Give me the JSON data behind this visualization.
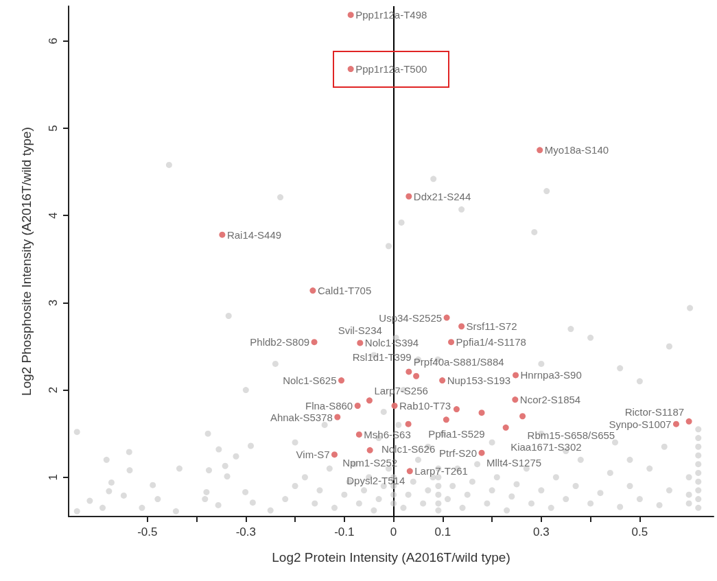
{
  "chart_data": {
    "type": "scatter",
    "xlabel": "Log2 Protein Intensity (A2016T/wild type)",
    "ylabel": "Log2 Phosphosite Intensity (A2016T/wild type)",
    "xlim": [
      -0.66,
      0.65
    ],
    "ylim": [
      0.55,
      6.4
    ],
    "xticks": [
      -0.5,
      {
        "value": -0.4,
        "label": null
      },
      -0.3,
      {
        "value": -0.2,
        "label": null
      },
      -0.1,
      0,
      0.1,
      {
        "value": 0.2,
        "label": null
      },
      0.3,
      {
        "value": 0.4,
        "label": null
      },
      0.5
    ],
    "yticks": [
      1,
      2,
      3,
      4,
      5,
      6
    ],
    "grid": false,
    "marker": "circle",
    "ref_lines": [
      {
        "axis": "x",
        "value": 0,
        "color": "#000000"
      }
    ],
    "series": [
      {
        "color": "#c4c4c4",
        "x": [
          -0.456,
          -0.23,
          0.081,
          0.311,
          0.138,
          0.016,
          0.286,
          -0.01,
          -0.335,
          -0.643,
          -0.377,
          -0.537,
          -0.583,
          -0.355,
          -0.29,
          -0.32,
          -0.536,
          -0.435,
          -0.375,
          -0.342,
          -0.573,
          -0.489,
          -0.578,
          -0.548,
          -0.617,
          -0.479,
          -0.643,
          -0.591,
          -0.511,
          -0.442,
          -0.38,
          -0.338,
          -0.301,
          -0.286,
          -0.356,
          -0.383,
          0.619,
          0.619,
          0.619,
          0.619,
          0.619,
          0.619,
          0.619,
          0.619,
          0.619,
          0.619,
          0.6,
          0.6,
          0.6,
          0.091,
          0.091,
          0.091,
          0.091,
          0.091,
          0.091,
          0,
          0,
          0,
          0,
          -0.25,
          -0.22,
          -0.2,
          -0.18,
          -0.16,
          -0.15,
          -0.13,
          -0.12,
          -0.1,
          -0.09,
          -0.08,
          -0.07,
          -0.06,
          -0.05,
          -0.04,
          -0.03,
          -0.02,
          -0.01,
          0.02,
          0.03,
          0.04,
          0.05,
          0.06,
          0.07,
          0.08,
          0.11,
          0.12,
          0.13,
          0.14,
          0.15,
          0.16,
          0.17,
          0.19,
          0.2,
          0.21,
          0.23,
          0.24,
          0.25,
          0.27,
          0.28,
          0.3,
          0.32,
          0.33,
          0.35,
          0.37,
          0.38,
          0.4,
          0.42,
          0.44,
          0.46,
          0.48,
          0.5,
          0.52,
          0.54,
          0.56,
          -0.2,
          -0.14,
          -0.03,
          0.01,
          0.07,
          0.1,
          0.2,
          0.3,
          0.35,
          0.45,
          0.48,
          0.55,
          0.602,
          -0.04,
          0.005,
          0.05,
          0.02,
          -0.02,
          0.09,
          0.4,
          0.46,
          0.5,
          -0.24,
          -0.3,
          0.3,
          0.36,
          0.56
        ],
        "values": [
          4.58,
          4.21,
          4.42,
          4.28,
          4.07,
          3.92,
          3.81,
          3.65,
          2.85,
          1.52,
          1.5,
          1.29,
          1.2,
          1.32,
          1.36,
          1.24,
          1.08,
          1.1,
          1.08,
          1.13,
          0.94,
          0.91,
          0.84,
          0.79,
          0.73,
          0.75,
          0.61,
          0.65,
          0.65,
          0.61,
          0.83,
          1.01,
          0.83,
          0.71,
          0.68,
          0.75,
          1.55,
          1.45,
          1.35,
          1.25,
          1.15,
          1.05,
          0.95,
          0.85,
          0.75,
          0.65,
          1.0,
          0.8,
          0.7,
          1.1,
          1.0,
          0.9,
          0.8,
          0.7,
          0.62,
          0.7,
          0.8,
          0.9,
          1.0,
          0.62,
          0.75,
          0.9,
          1.0,
          0.7,
          0.85,
          1.1,
          0.65,
          0.8,
          0.95,
          1.15,
          0.7,
          0.85,
          1.0,
          0.62,
          0.75,
          0.9,
          1.1,
          0.65,
          0.8,
          0.95,
          1.2,
          0.7,
          0.85,
          1.0,
          0.75,
          0.9,
          1.1,
          0.65,
          0.8,
          0.95,
          1.15,
          0.7,
          0.85,
          1.0,
          0.62,
          0.78,
          0.92,
          1.1,
          0.7,
          0.85,
          0.65,
          1.0,
          0.75,
          0.9,
          1.2,
          0.7,
          0.82,
          1.05,
          0.66,
          0.9,
          0.75,
          1.1,
          0.68,
          0.85,
          1.4,
          1.6,
          1.45,
          1.6,
          1.35,
          1.5,
          1.4,
          1.5,
          1.3,
          1.4,
          1.2,
          1.35,
          2.94,
          2.4,
          2.6,
          2.35,
          2.0,
          1.75,
          2.35,
          2.6,
          2.25,
          2.1,
          2.3,
          2.0,
          2.3,
          2.7,
          2.5
        ]
      },
      {
        "color": "#e07070",
        "x": [
          -0.087,
          -0.087,
          0.297,
          0.031,
          -0.348,
          -0.164,
          -0.161,
          -0.068,
          -0.106,
          -0.073,
          -0.049,
          0.002,
          -0.114,
          -0.07,
          -0.12,
          -0.048,
          0.033,
          0.031,
          0.046,
          0.108,
          0.138,
          0.117,
          0.099,
          0.128,
          0.107,
          0.03,
          0.248,
          0.247,
          0.262,
          0.228,
          0.179,
          0.179,
          0.574,
          0.6
        ],
        "values": [
          6.3,
          5.68,
          4.75,
          4.22,
          3.78,
          3.14,
          2.55,
          2.54,
          2.11,
          1.82,
          1.88,
          1.82,
          1.69,
          1.49,
          1.26,
          1.31,
          1.07,
          2.21,
          2.16,
          2.83,
          2.73,
          2.55,
          2.11,
          1.78,
          1.66,
          1.61,
          2.17,
          1.89,
          1.7,
          1.57,
          1.28,
          1.74,
          1.61,
          1.64
        ]
      }
    ],
    "annotations": [
      {
        "text": "Ppp1r12a-T498",
        "x": -0.087,
        "y": 6.3
      },
      {
        "text": "Ppp1r12a-T500",
        "x": -0.087,
        "y": 5.68
      },
      {
        "text": "Myo18a-S140",
        "x": 0.297,
        "y": 4.75
      },
      {
        "text": "Ddx21-S244",
        "x": 0.031,
        "y": 4.22
      },
      {
        "text": "Rai14-S449",
        "x": -0.348,
        "y": 3.78
      },
      {
        "text": "Prpf40a-S881/S884",
        "x": 0.031,
        "y": 2.21
      },
      {
        "text": "Cald1-T705",
        "x": -0.164,
        "y": 3.14
      },
      {
        "text": "Larp7-S256",
        "x": -0.049,
        "y": 1.88
      },
      {
        "text": "Usp34-S2525",
        "x": 0.108,
        "y": 2.83
      },
      {
        "text": "Srsf11-S72",
        "x": 0.138,
        "y": 2.73
      },
      {
        "text": "Nolc1-S394",
        "x": -0.068,
        "y": 2.54
      },
      {
        "text": "Ppfia1/4-S1178",
        "x": 0.117,
        "y": 2.55
      },
      {
        "text": "Phldb2-S809",
        "x": -0.161,
        "y": 2.55
      },
      {
        "text": "Svil-S234",
        "x": -0.068,
        "y": 2.54
      },
      {
        "text": "Rsl1d1-T399",
        "x": 0.046,
        "y": 2.16
      },
      {
        "text": "Hnrnpa3-S90",
        "x": 0.248,
        "y": 2.17
      },
      {
        "text": "Nolc1-S625",
        "x": -0.106,
        "y": 2.11
      },
      {
        "text": "Nup153-S193",
        "x": 0.099,
        "y": 2.11
      },
      {
        "text": "Rab10-T73",
        "x": 0.002,
        "y": 1.82
      },
      {
        "text": "Flna-S860",
        "x": -0.073,
        "y": 1.82
      },
      {
        "text": "Ncor2-S1854",
        "x": 0.247,
        "y": 1.89
      },
      {
        "text": "Synpo-S1007",
        "x": 0.574,
        "y": 1.61
      },
      {
        "text": "Ahnak-S5378",
        "x": -0.114,
        "y": 1.69
      },
      {
        "text": "Ppfia1-S529",
        "x": 0.128,
        "y": 1.78
      },
      {
        "text": "Rbm15-S658/S655",
        "x": 0.262,
        "y": 1.7
      },
      {
        "text": "Msh6-S63",
        "x": -0.07,
        "y": 1.49
      },
      {
        "text": "Nolc1-S626",
        "x": 0.03,
        "y": 1.61
      },
      {
        "text": "Kiaa1671-S302",
        "x": 0.228,
        "y": 1.57
      },
      {
        "text": "Rictor-S1187",
        "x": 0.6,
        "y": 1.64
      },
      {
        "text": "Vim-S7",
        "x": -0.12,
        "y": 1.26
      },
      {
        "text": "Npm1-S252",
        "x": -0.048,
        "y": 1.31
      },
      {
        "text": "Mllt4-S1275",
        "x": 0.179,
        "y": 1.28
      },
      {
        "text": "Larp7-T261",
        "x": 0.033,
        "y": 1.07
      },
      {
        "text": "Ptrf-S20",
        "x": 0.179,
        "y": 1.28
      },
      {
        "text": "Dpysl2-T514",
        "x": 0.033,
        "y": 1.07
      }
    ]
  }
}
